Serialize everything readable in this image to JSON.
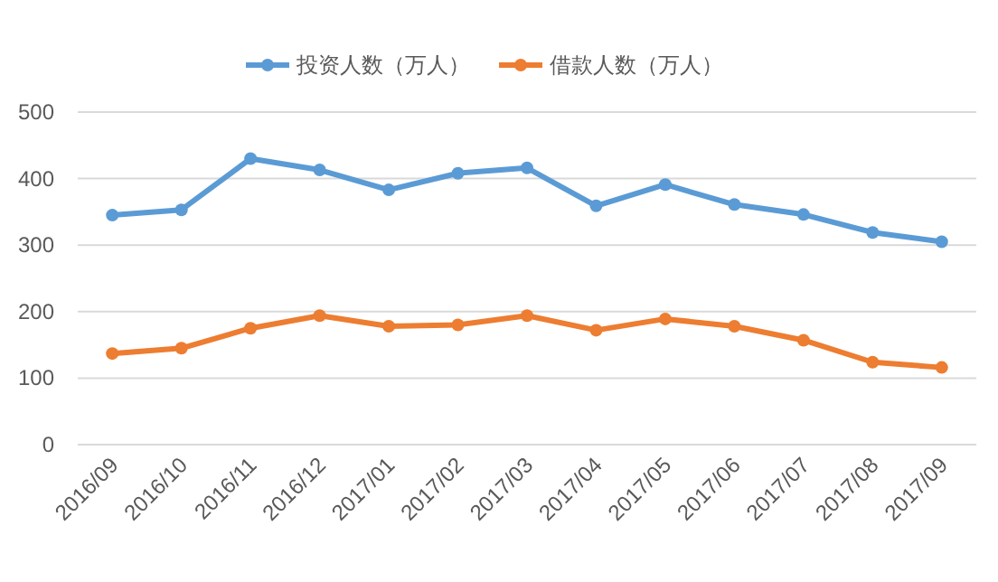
{
  "chart_data": {
    "type": "line",
    "categories": [
      "2016/09",
      "2016/10",
      "2016/11",
      "2016/12",
      "2017/01",
      "2017/02",
      "2017/03",
      "2017/04",
      "2017/05",
      "2017/06",
      "2017/07",
      "2017/08",
      "2017/09"
    ],
    "series": [
      {
        "name": "投资人数（万人）",
        "color": "#5b9bd5",
        "values": [
          345,
          353,
          430,
          413,
          383,
          408,
          416,
          359,
          391,
          361,
          346,
          319,
          305
        ]
      },
      {
        "name": "借款人数（万人）",
        "color": "#ed7d31",
        "values": [
          137,
          145,
          175,
          194,
          178,
          180,
          194,
          172,
          189,
          178,
          157,
          124,
          116
        ]
      }
    ],
    "ylim": [
      0,
      500
    ],
    "yticks": [
      0,
      100,
      200,
      300,
      400,
      500
    ],
    "grid": "y",
    "legend": "top",
    "marker": "circle",
    "line_style": "solid"
  }
}
